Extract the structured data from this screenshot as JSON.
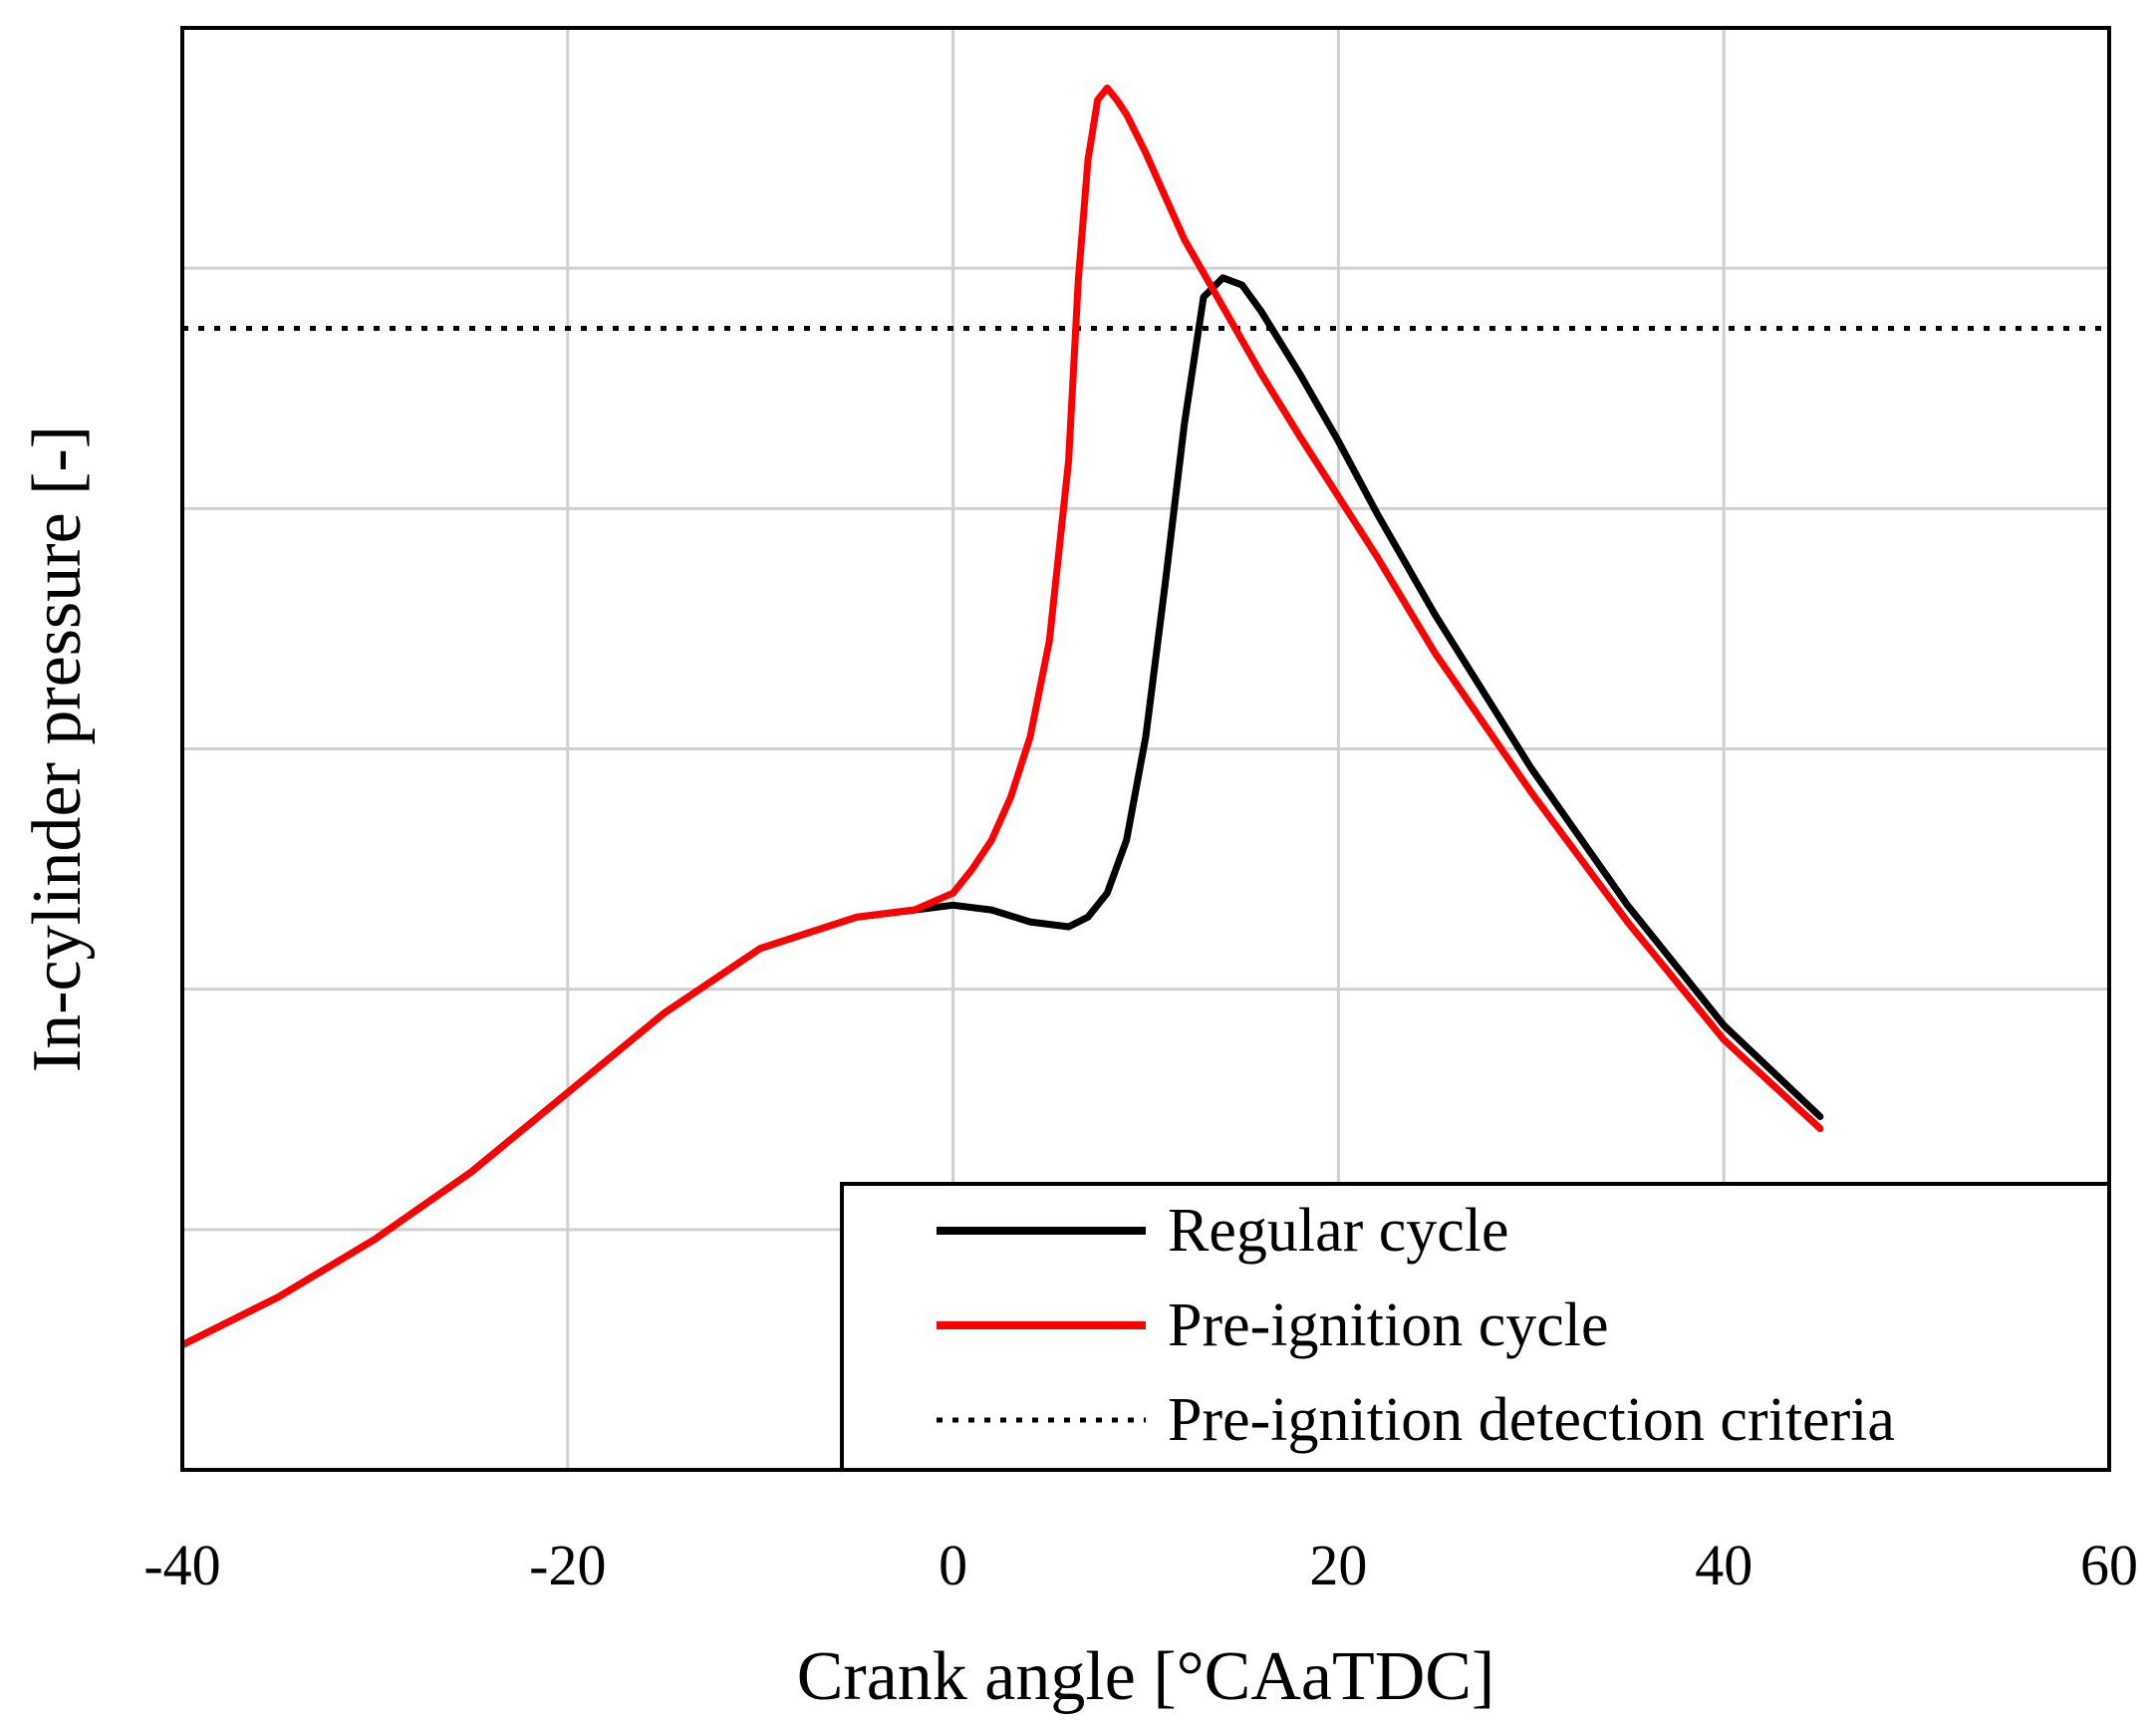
{
  "chart_data": {
    "type": "line",
    "title": "",
    "xlabel": "Crank angle [°CAaTDC]",
    "ylabel": "In-cylinder pressure [-]",
    "xlim": [
      -40,
      60
    ],
    "ylim": [
      0,
      6
    ],
    "x_ticks": [
      -40,
      -20,
      0,
      20,
      40,
      60
    ],
    "x_tick_labels": [
      "-40",
      "-20",
      "0",
      "20",
      "40",
      "60"
    ],
    "y_gridlines": [
      1,
      2,
      3,
      4,
      5
    ],
    "y_tick_labels_shown": false,
    "grid": true,
    "legend": {
      "placement": "bottom-right",
      "entries": [
        {
          "label": "Regular cycle",
          "color": "#000000",
          "style": "solid"
        },
        {
          "label": "Pre-ignition cycle",
          "color": "#ff0000",
          "style": "solid"
        },
        {
          "label": "Pre-ignition detection criteria",
          "color": "#000000",
          "style": "dotted"
        }
      ]
    },
    "series": [
      {
        "color": "#000000",
        "style": "solid",
        "x": [
          -40,
          -35,
          -30,
          -25,
          -20,
          -15,
          -10,
          -5,
          -2,
          0,
          2,
          4,
          6,
          7,
          8,
          9,
          10,
          11,
          12,
          13,
          14,
          15,
          16,
          18,
          20,
          22,
          25,
          30,
          35,
          40,
          45
        ],
        "y": [
          0.52,
          0.72,
          0.96,
          1.24,
          1.57,
          1.9,
          2.17,
          2.3,
          2.33,
          2.35,
          2.33,
          2.28,
          2.26,
          2.3,
          2.4,
          2.62,
          3.05,
          3.68,
          4.35,
          4.88,
          4.96,
          4.93,
          4.82,
          4.56,
          4.28,
          3.98,
          3.56,
          2.92,
          2.35,
          1.85,
          1.47
        ]
      },
      {
        "color": "#ff0000",
        "style": "solid",
        "x": [
          -40,
          -35,
          -30,
          -25,
          -20,
          -15,
          -10,
          -5,
          -2,
          0,
          1,
          2,
          3,
          4,
          5,
          6,
          6.5,
          7,
          7.5,
          8,
          8.5,
          9,
          10,
          11,
          12,
          14,
          16,
          18,
          20,
          22,
          25,
          30,
          35,
          40,
          45
        ],
        "y": [
          0.52,
          0.72,
          0.96,
          1.24,
          1.57,
          1.9,
          2.17,
          2.3,
          2.33,
          2.4,
          2.5,
          2.62,
          2.8,
          3.05,
          3.45,
          4.2,
          4.95,
          5.45,
          5.7,
          5.75,
          5.7,
          5.64,
          5.48,
          5.3,
          5.12,
          4.84,
          4.56,
          4.3,
          4.05,
          3.8,
          3.4,
          2.82,
          2.28,
          1.79,
          1.42
        ]
      },
      {
        "color": "#000000",
        "style": "dotted",
        "x": [
          -40,
          60
        ],
        "y": [
          4.75,
          4.75
        ]
      }
    ]
  }
}
